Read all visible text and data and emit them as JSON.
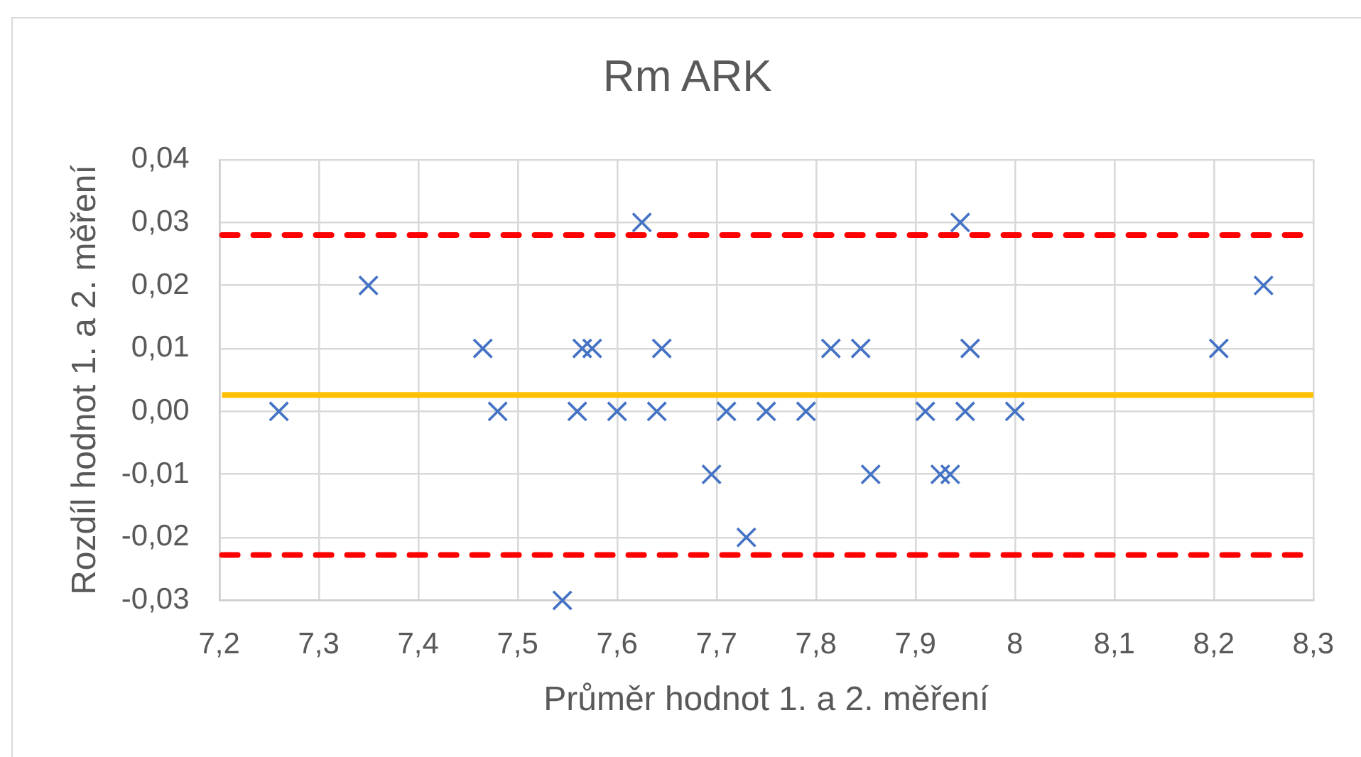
{
  "chart_data": {
    "type": "scatter",
    "title": "Rm ARK",
    "xlabel": "Průměr hodnot 1. a 2. měření",
    "ylabel": "Rozdíl hodnot 1. a 2. měření",
    "x": [
      7.26,
      7.35,
      7.465,
      7.48,
      7.545,
      7.56,
      7.565,
      7.575,
      7.6,
      7.625,
      7.64,
      7.645,
      7.695,
      7.71,
      7.73,
      7.75,
      7.79,
      7.815,
      7.845,
      7.855,
      7.91,
      7.925,
      7.935,
      7.945,
      7.95,
      7.955,
      8,
      8.205,
      8.25
    ],
    "values": [
      0,
      0.02,
      0.01,
      0,
      -0.03,
      0,
      0.01,
      0.01,
      0,
      0.03,
      0,
      0.01,
      -0.01,
      0,
      -0.02,
      0,
      0,
      0.01,
      0.01,
      -0.01,
      0,
      -0.01,
      -0.01,
      0.03,
      0,
      0.01,
      0,
      0.01,
      0.02
    ],
    "color": "#4472c4",
    "marker": "cross",
    "xlim": [
      7.2,
      8.3
    ],
    "xticks": [
      {
        "value": 7.2,
        "label": "7,2"
      },
      {
        "value": 7.3,
        "label": "7,3"
      },
      {
        "value": 7.4,
        "label": "7,4"
      },
      {
        "value": 7.5,
        "label": "7,5"
      },
      {
        "value": 7.6,
        "label": "7,6"
      },
      {
        "value": 7.7,
        "label": "7,7"
      },
      {
        "value": 7.8,
        "label": "7,8"
      },
      {
        "value": 7.9,
        "label": "7,9"
      },
      8,
      {
        "value": 8.1,
        "label": "8,1"
      },
      {
        "value": 8.2,
        "label": "8,2"
      },
      {
        "value": 8.3,
        "label": "8,3"
      }
    ],
    "ylim": [
      -0.03,
      0.04
    ],
    "yticks": [
      {
        "value": -0.03,
        "label": "-0,03"
      },
      {
        "value": -0.02,
        "label": "-0,02"
      },
      {
        "value": -0.01,
        "label": "-0,01"
      },
      {
        "value": 0,
        "label": "0,00"
      },
      {
        "value": 0.01,
        "label": "0,01"
      },
      {
        "value": 0.02,
        "label": "0,02"
      },
      {
        "value": 0.03,
        "label": "0,03"
      },
      {
        "value": 0.04,
        "label": "0,04"
      }
    ],
    "grid": true,
    "legend": false,
    "ref_lines": [
      {
        "axis": "y",
        "value": 0.028,
        "color": "#ff0000",
        "line_style": "dashed"
      },
      {
        "axis": "y",
        "value": 0.0026,
        "color": "#ffc000",
        "line_style": "solid"
      },
      {
        "axis": "y",
        "value": -0.0228,
        "color": "#ff0000",
        "line_style": "dashed"
      }
    ]
  }
}
